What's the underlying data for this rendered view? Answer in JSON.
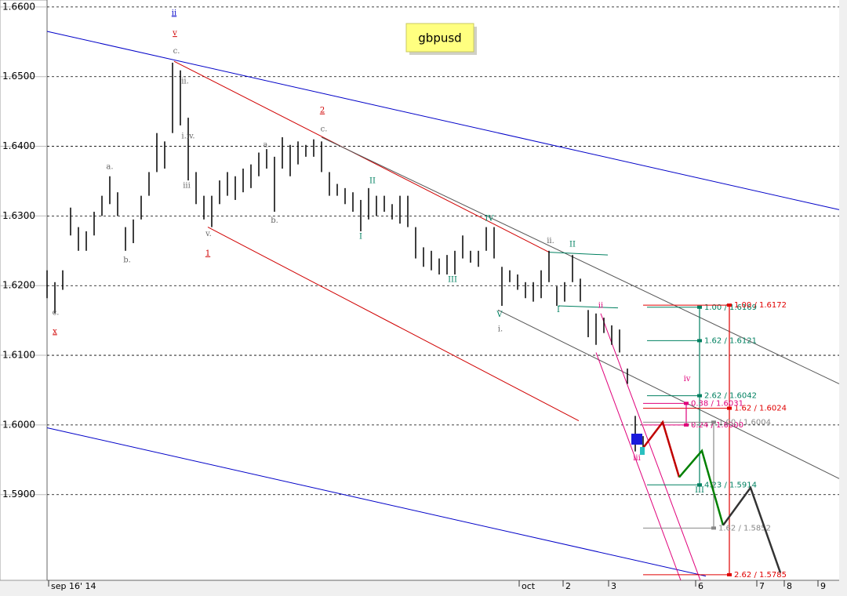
{
  "chart_data": {
    "type": "ohlc",
    "title": "gbpusd",
    "x": [
      0,
      2,
      4,
      6,
      8,
      10,
      12,
      14,
      16,
      18,
      20,
      22,
      24,
      26,
      28,
      30,
      32,
      34,
      36,
      38,
      40,
      42,
      44,
      46,
      48,
      50,
      52,
      54,
      56,
      58,
      60,
      62,
      64,
      66,
      68,
      70,
      72,
      74,
      76,
      78,
      80,
      82,
      84,
      86,
      88,
      90,
      92,
      94,
      96,
      98,
      100,
      102,
      104,
      106,
      108,
      110,
      112,
      114,
      116,
      118,
      120,
      122,
      124,
      126,
      128,
      130,
      132,
      134,
      136,
      138,
      140,
      142,
      144,
      146,
      148,
      150,
      152
    ],
    "high": [
      1.6222,
      1.6205,
      1.6222,
      1.6312,
      1.6284,
      1.6278,
      1.6306,
      1.6329,
      1.6357,
      1.6334,
      1.6284,
      1.6295,
      1.6329,
      1.6363,
      1.6419,
      1.6407,
      1.652,
      1.6509,
      1.6441,
      1.6363,
      1.6329,
      1.6329,
      1.6351,
      1.6363,
      1.6357,
      1.6368,
      1.6374,
      1.6391,
      1.6396,
      1.6385,
      1.6413,
      1.6402,
      1.6407,
      1.6402,
      1.641,
      1.6407,
      1.6363,
      1.6346,
      1.634,
      1.6334,
      1.6323,
      1.634,
      1.6329,
      1.6329,
      1.6317,
      1.6329,
      1.6329,
      1.6284,
      1.6255,
      1.625,
      1.6239,
      1.6244,
      1.625,
      1.6272,
      1.625,
      1.625,
      1.6284,
      1.6284,
      1.6227,
      1.6222,
      1.6216,
      1.6205,
      1.6205,
      1.6222,
      1.625,
      1.6199,
      1.6205,
      1.6244,
      1.621,
      1.6165,
      1.616,
      1.6154,
      1.6143,
      1.6137,
      1.6081,
      1.6013,
      1.5984
    ],
    "low": [
      1.6182,
      1.616,
      1.6194,
      1.6272,
      1.625,
      1.625,
      1.6272,
      1.63,
      1.6317,
      1.63,
      1.625,
      1.6261,
      1.6295,
      1.6329,
      1.6363,
      1.6368,
      1.6419,
      1.643,
      1.6351,
      1.6317,
      1.6295,
      1.6284,
      1.6317,
      1.6329,
      1.6323,
      1.6334,
      1.634,
      1.6357,
      1.6368,
      1.6306,
      1.6368,
      1.6357,
      1.6374,
      1.6385,
      1.6385,
      1.6363,
      1.6329,
      1.6329,
      1.6317,
      1.6306,
      1.6278,
      1.6295,
      1.63,
      1.6306,
      1.6295,
      1.6289,
      1.6284,
      1.6239,
      1.6227,
      1.6222,
      1.6216,
      1.6216,
      1.6216,
      1.6239,
      1.6233,
      1.6227,
      1.625,
      1.6239,
      1.6171,
      1.6205,
      1.6194,
      1.6182,
      1.6177,
      1.6182,
      1.6205,
      1.6171,
      1.6177,
      1.6205,
      1.6177,
      1.6126,
      1.6115,
      1.6132,
      1.6115,
      1.6104,
      1.6059,
      1.5962,
      1.5967
    ],
    "color": "#000000",
    "xlim": [
      0,
      202
    ],
    "ylim": [
      1.5777,
      1.661
    ],
    "xticks": [
      {
        "value": 0.4,
        "label": "sep 16' 14"
      },
      {
        "value": 120.4,
        "label": "oct"
      },
      {
        "value": 131.6,
        "label": "2"
      },
      {
        "value": 143.2,
        "label": "3"
      },
      {
        "value": 165.4,
        "label": "6"
      },
      {
        "value": 181,
        "label": "7"
      },
      {
        "value": 188,
        "label": "8"
      },
      {
        "value": 196.6,
        "label": "9"
      }
    ],
    "yticks": [
      {
        "value": 1.59,
        "label": "1.5900"
      },
      {
        "value": 1.6,
        "label": "1.6000"
      },
      {
        "value": 1.61,
        "label": "1.6100"
      },
      {
        "value": 1.62,
        "label": "1.6200"
      },
      {
        "value": 1.63,
        "label": "1.6300"
      },
      {
        "value": 1.64,
        "label": "1.6400"
      },
      {
        "value": 1.65,
        "label": "1.6500"
      },
      {
        "value": 1.66,
        "label": "1.6600"
      }
    ],
    "grid": true,
    "trendlines": [
      {
        "color": "#0000c8",
        "x": [
          0,
          202
        ],
        "y": [
          1.6565,
          1.6309
        ]
      },
      {
        "color": "#0000c8",
        "x": [
          0,
          168
        ],
        "y": [
          1.5996,
          1.5783
        ]
      },
      {
        "color": "#d00000",
        "x": [
          32.4,
          128
        ],
        "y": [
          1.6522,
          1.6248
        ]
      },
      {
        "color": "#d00000",
        "x": [
          41,
          135.6
        ],
        "y": [
          1.6284,
          1.6006
        ]
      },
      {
        "color": "#555555",
        "x": [
          70,
          202
        ],
        "y": [
          1.6413,
          1.6059
        ]
      },
      {
        "color": "#555555",
        "x": [
          115,
          202
        ],
        "y": [
          1.6165,
          1.5923
        ]
      },
      {
        "color": "#e0007a",
        "x": [
          140,
          161.6
        ],
        "y": [
          1.6104,
          1.5777
        ]
      },
      {
        "color": "#e0007a",
        "x": [
          141.2,
          166.6
        ],
        "y": [
          1.616,
          1.5777
        ]
      },
      {
        "color": "#008060",
        "x": [
          128,
          143
        ],
        "y": [
          1.6248,
          1.6244
        ]
      },
      {
        "color": "#008060",
        "x": [
          130.4,
          145.6
        ],
        "y": [
          1.6171,
          1.6168
        ]
      }
    ],
    "projections": [
      {
        "color": "#c00000",
        "x": [
          152,
          157,
          161.2
        ],
        "y": [
          1.5967,
          1.6004,
          1.5925
        ]
      },
      {
        "color": "#008000",
        "x": [
          161.2,
          167,
          172.4
        ],
        "y": [
          1.5925,
          1.5963,
          1.5856
        ]
      },
      {
        "color": "#333333",
        "x": [
          172.4,
          179.4,
          187
        ],
        "y": [
          1.5856,
          1.591,
          1.5788
        ]
      }
    ],
    "fib_groups": [
      {
        "color": "#008060",
        "x": [
          153,
          166.4
        ],
        "levels": [
          {
            "value": 1.6169,
            "label": "1.00 / 1.6169"
          },
          {
            "value": 1.6121,
            "label": "1.62 / 1.6121"
          },
          {
            "value": 1.6042,
            "label": "2.62 / 1.6042"
          },
          {
            "value": 1.5914,
            "label": "4.23 / 1.5914"
          }
        ]
      },
      {
        "color": "#e00000",
        "x": [
          152,
          174
        ],
        "levels": [
          {
            "value": 1.6172,
            "label": "1.00 / 1.6172"
          },
          {
            "value": 1.6024,
            "label": "1.62 / 1.6024"
          },
          {
            "value": 1.5785,
            "label": "2.62 / 1.5785"
          }
        ]
      },
      {
        "color": "#e0007a",
        "x": [
          152,
          163
        ],
        "levels": [
          {
            "value": 1.6031,
            "label": "0.38 / 1.6031"
          },
          {
            "value": 1.6,
            "label": "0.24 / 1.6000"
          }
        ]
      },
      {
        "color": "#888888",
        "x": [
          152,
          170
        ],
        "levels": [
          {
            "value": 1.6004,
            "label": "1.00 / 1.6004"
          },
          {
            "value": 1.5852,
            "label": "1.62 / 1.5852"
          }
        ]
      }
    ],
    "annotations": [
      {
        "text": "ii",
        "x": 32.4,
        "y": 1.6591,
        "color": "#0000c8",
        "underline": true
      },
      {
        "text": "v",
        "x": 32.6,
        "y": 1.6562,
        "color": "#d00000",
        "underline": true
      },
      {
        "text": "c.",
        "x": 33,
        "y": 1.6536,
        "color": "#666666"
      },
      {
        "text": "ii.",
        "x": 35.2,
        "y": 1.6493,
        "color": "#666666"
      },
      {
        "text": "i.iv.",
        "x": 36,
        "y": 1.6414,
        "color": "#666666"
      },
      {
        "text": "iii",
        "x": 35.6,
        "y": 1.6343,
        "color": "#666666"
      },
      {
        "text": "v.",
        "x": 41.2,
        "y": 1.6274,
        "color": "#666666"
      },
      {
        "text": "1",
        "x": 41,
        "y": 1.6246,
        "color": "#d00000",
        "underline": true
      },
      {
        "text": "a.",
        "x": 16,
        "y": 1.637,
        "color": "#666666"
      },
      {
        "text": "b.",
        "x": 20.4,
        "y": 1.6236,
        "color": "#666666"
      },
      {
        "text": "c.",
        "x": 2.2,
        "y": 1.6161,
        "color": "#666666"
      },
      {
        "text": "x",
        "x": 2,
        "y": 1.6134,
        "color": "#d00000",
        "underline": true
      },
      {
        "text": "a.",
        "x": 56,
        "y": 1.6402,
        "color": "#666666"
      },
      {
        "text": "b.",
        "x": 58,
        "y": 1.6293,
        "color": "#666666"
      },
      {
        "text": "2",
        "x": 70.2,
        "y": 1.6451,
        "color": "#d00000",
        "underline": true
      },
      {
        "text": "c.",
        "x": 70.6,
        "y": 1.6424,
        "color": "#666666"
      },
      {
        "text": "II",
        "x": 83,
        "y": 1.635,
        "color": "#008060"
      },
      {
        "text": "I",
        "x": 80,
        "y": 1.627,
        "color": "#008060"
      },
      {
        "text": "III",
        "x": 103.4,
        "y": 1.6208,
        "color": "#008060"
      },
      {
        "text": "IV",
        "x": 112.8,
        "y": 1.6296,
        "color": "#008060"
      },
      {
        "text": "V",
        "x": 115.4,
        "y": 1.6158,
        "color": "#008060"
      },
      {
        "text": "i.",
        "x": 115.6,
        "y": 1.6137,
        "color": "#666666"
      },
      {
        "text": "ii.",
        "x": 128.4,
        "y": 1.6264,
        "color": "#666666"
      },
      {
        "text": "II",
        "x": 134,
        "y": 1.6259,
        "color": "#008060"
      },
      {
        "text": "I",
        "x": 130.4,
        "y": 1.6165,
        "color": "#008060"
      },
      {
        "text": "ii",
        "x": 141.2,
        "y": 1.6171,
        "color": "#e0007a"
      },
      {
        "text": "iv",
        "x": 163.2,
        "y": 1.6066,
        "color": "#e0007a"
      },
      {
        "text": "iii",
        "x": 150.4,
        "y": 1.5952,
        "color": "#e0007a"
      },
      {
        "text": "III",
        "x": 166.4,
        "y": 1.5906,
        "color": "#008060"
      }
    ]
  }
}
